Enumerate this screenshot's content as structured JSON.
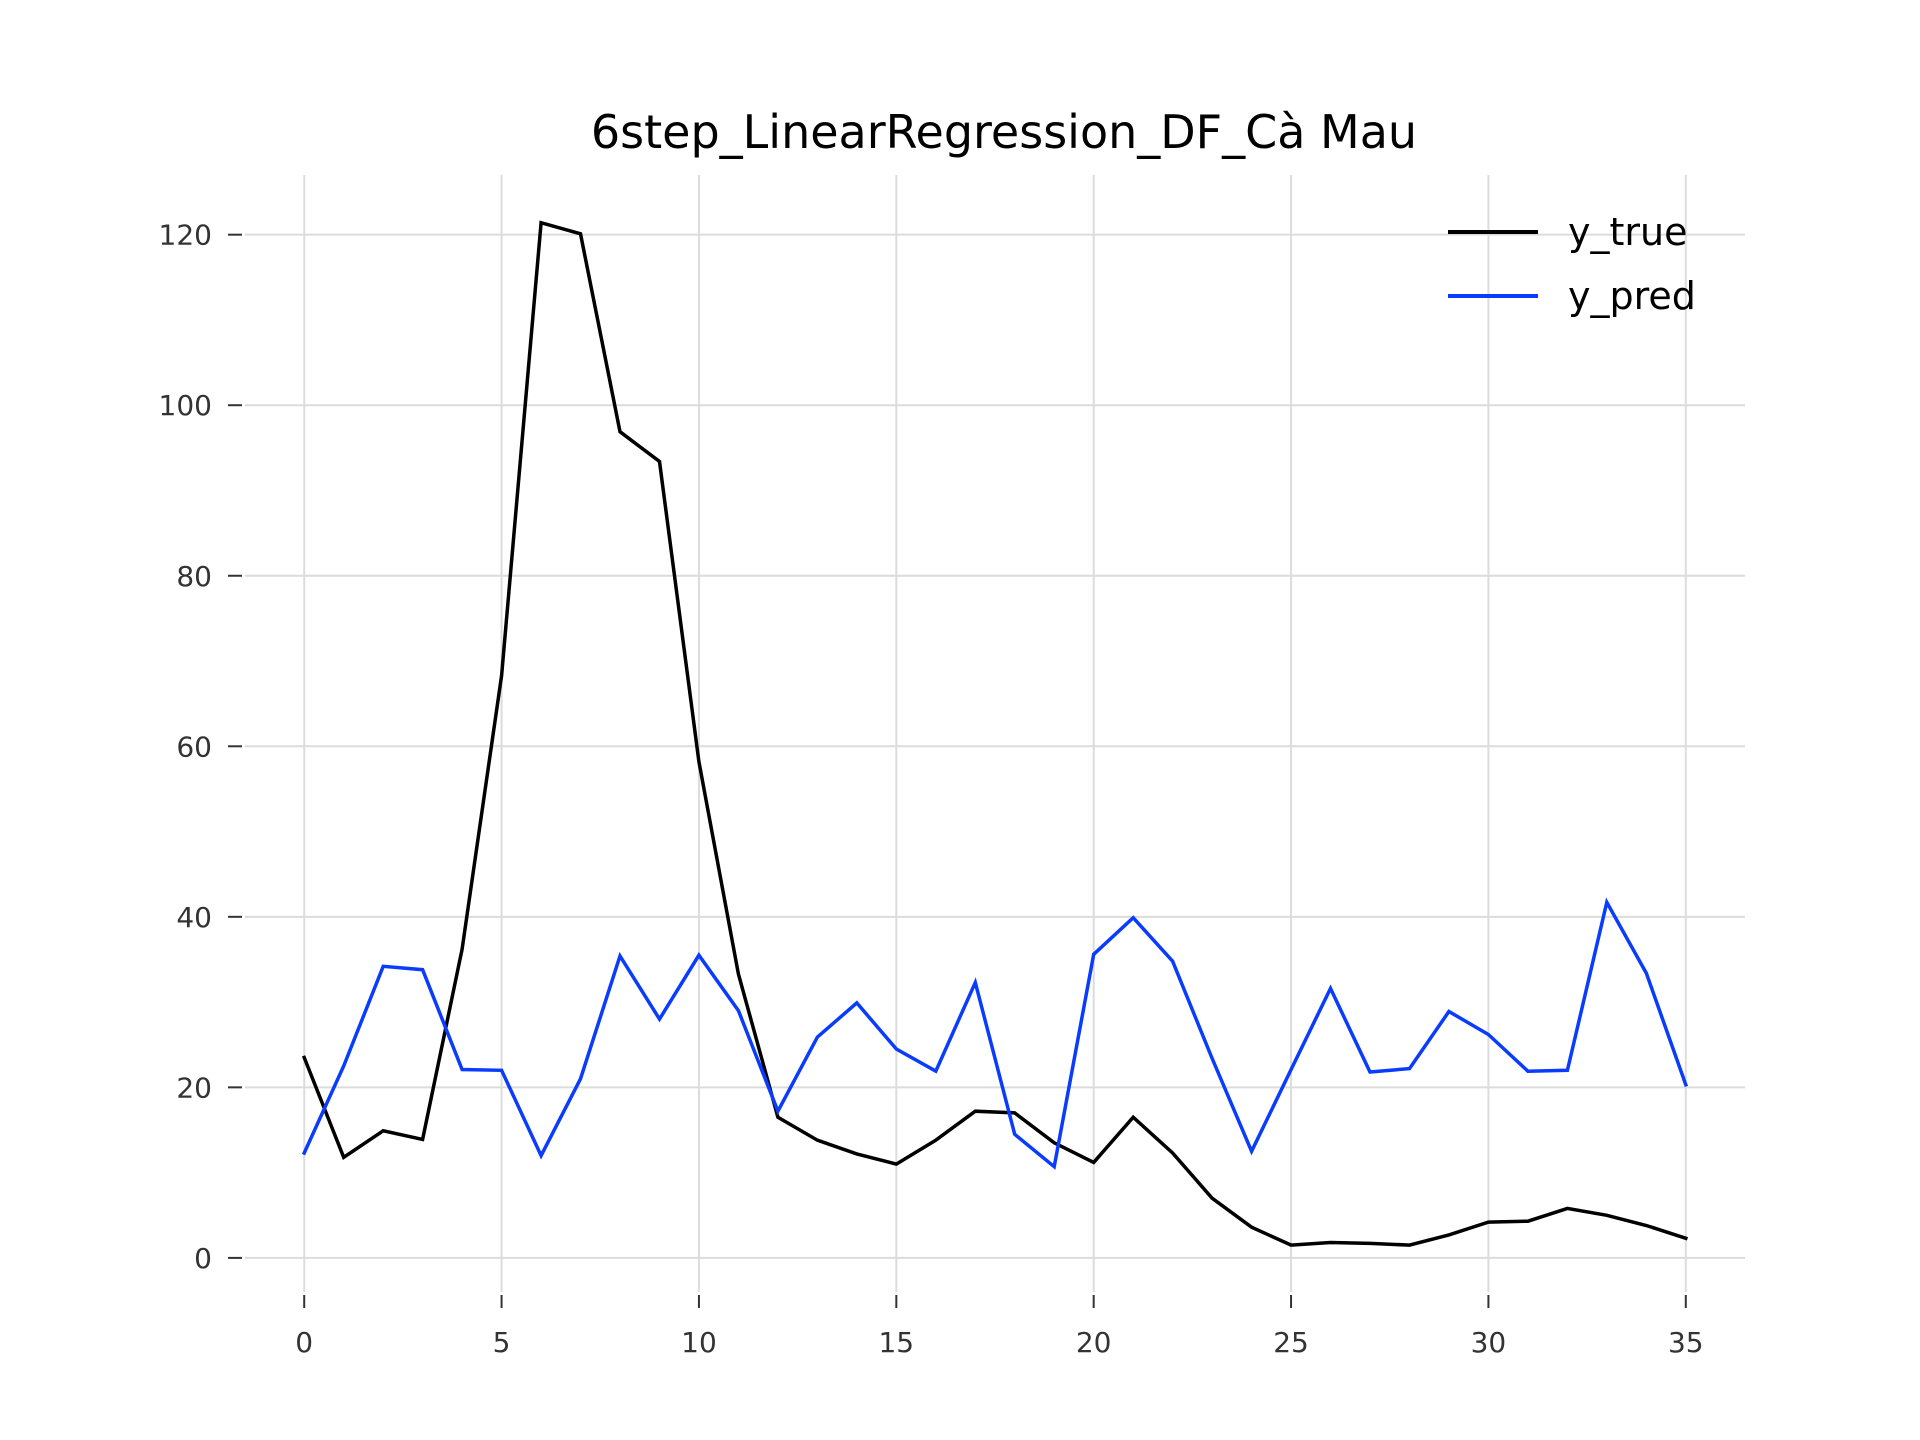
{
  "chart_data": {
    "type": "line",
    "title": "6step_LinearRegression_DF_Cà Mau",
    "xlabel": "",
    "ylabel": "",
    "xlim": [
      -1.5,
      36.5
    ],
    "ylim": [
      -4,
      127
    ],
    "xticks": [
      0,
      5,
      10,
      15,
      20,
      25,
      30,
      35
    ],
    "yticks": [
      0,
      20,
      40,
      60,
      80,
      100,
      120
    ],
    "grid": true,
    "legend_position": "top-right",
    "x": [
      0,
      1,
      2,
      3,
      4,
      5,
      6,
      7,
      8,
      9,
      10,
      11,
      12,
      13,
      14,
      15,
      16,
      17,
      18,
      19,
      20,
      21,
      22,
      23,
      24,
      25,
      26,
      27,
      28,
      29,
      30,
      31,
      32,
      33,
      34,
      35
    ],
    "series": [
      {
        "name": "y_true",
        "color": "#000000",
        "values": [
          23.5,
          11.8,
          14.9,
          13.9,
          36.2,
          68.3,
          121.4,
          120.1,
          96.9,
          93.4,
          58.2,
          33.3,
          16.5,
          13.8,
          12.2,
          11.0,
          13.8,
          17.2,
          17.0,
          13.5,
          11.2,
          16.5,
          12.3,
          7.0,
          3.6,
          1.5,
          1.8,
          1.7,
          1.5,
          2.7,
          4.2,
          4.3,
          5.8,
          5.0,
          3.8,
          2.3
        ]
      },
      {
        "name": "y_pred",
        "color": "#0a3cff",
        "values": [
          12.3,
          22.5,
          34.2,
          33.8,
          22.1,
          22.0,
          12.0,
          21.0,
          35.4,
          28.0,
          35.5,
          29.0,
          17.2,
          25.9,
          29.9,
          24.5,
          21.9,
          32.3,
          14.5,
          10.7,
          35.6,
          39.9,
          34.8,
          23.4,
          12.5,
          22.1,
          31.6,
          21.8,
          22.2,
          28.9,
          26.2,
          21.9,
          22.0,
          41.7,
          33.4,
          20.3
        ]
      }
    ]
  }
}
